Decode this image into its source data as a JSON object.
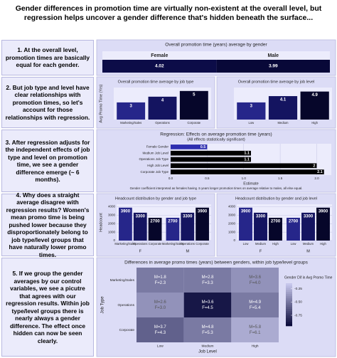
{
  "title": "Gender differences in promotion time are virtually non-existent at the overall level, but regression helps uncover a gender difference that's hidden beneath the surface...",
  "steps": [
    "1. At the overall level, promotion times are basically equal for each gender.",
    "2. But job type and level have clear relationships with promotion times, so let's account for those relationships with regression.",
    "3. After regression adjusts for the independent effects of job type and level on promotion time, we see a gender difference emerge (~ 6 months).",
    "4. Why does a straight average disagree with regression results? Women's mean promo time is being pushed lower because they disproportionately belong to job type/level groups that have naturally lower promo times.",
    "5. If we group the gender averages by our control variables, we see a picutre that agrees with our regression results. Within job type/level groups there is nearly always a gender difference. The effect once hidden can now be seen clearly."
  ],
  "chart_data": [
    {
      "type": "tile",
      "title": "Overall promotion time (years) average by gender",
      "categories": [
        "Female",
        "Male"
      ],
      "values": [
        4.02,
        3.99
      ],
      "colors": [
        "#0c0c48",
        "#080838"
      ]
    },
    {
      "type": "bar",
      "title": "Overall promotion time average by job type",
      "ylabel": "Avg Promo Time (Yrs)",
      "categories": [
        "Marketing/Sales",
        "Operations",
        "Corporate"
      ],
      "values": [
        3,
        4,
        5
      ],
      "colors": [
        "#26268a",
        "#141460",
        "#06062a"
      ],
      "ylim": [
        0,
        5.6
      ]
    },
    {
      "type": "bar",
      "title": "Overall promotion time average by job level",
      "categories": [
        "Low",
        "Medium",
        "High"
      ],
      "values": [
        3,
        4.1,
        4.9
      ],
      "colors": [
        "#26268a",
        "#141460",
        "#06062a"
      ],
      "ylim": [
        0,
        5.6
      ]
    },
    {
      "type": "barh",
      "title": "Regression: Effects on average promotion time (years)",
      "subtitle": "(All effects statistically significant)",
      "xlabel": "Estimate",
      "note": "Gender coefficient interpreted as females having .5 years longer promotion times on average relative to males, all else equal.",
      "categories": [
        "Female Gender",
        "Medium Job Level",
        "Operations Job Type",
        "High Job Level",
        "Corporate Job Type"
      ],
      "values": [
        0.5,
        1.1,
        1.1,
        2,
        2.1
      ],
      "colors": [
        "#2e2eb0",
        "#000000",
        "#000000",
        "#000000",
        "#000000"
      ],
      "xlim": [
        0,
        2.2
      ],
      "xticks": [
        {
          "value": 0,
          "label": "0.0"
        },
        0.5,
        {
          "value": 1,
          "label": "1.0"
        },
        1.5,
        {
          "value": 2,
          "label": "2.0"
        }
      ]
    },
    {
      "type": "bar",
      "title": "Headcount distribution by gender and job type",
      "ylabel": "Headcount",
      "categories": [
        "Marketing/Sales",
        "Operations",
        "Corporate"
      ],
      "series": [
        {
          "name": "F",
          "values": [
            3900,
            3300,
            2700
          ]
        },
        {
          "name": "M",
          "values": [
            2700,
            3300,
            3900
          ]
        }
      ],
      "colors": [
        "#26268a",
        "#141460",
        "#06062a"
      ],
      "ylim": [
        0,
        4300
      ],
      "yticks": [
        0,
        1000,
        2000,
        3000,
        4000
      ],
      "grid": true
    },
    {
      "type": "bar",
      "title": "Headcount distribution by gender and job level",
      "categories": [
        "Low",
        "Medium",
        "High"
      ],
      "series": [
        {
          "name": "F",
          "values": [
            3900,
            3300,
            2700
          ]
        },
        {
          "name": "M",
          "values": [
            2700,
            3300,
            3900
          ]
        }
      ],
      "colors": [
        "#26268a",
        "#141460",
        "#06062a"
      ],
      "ylim": [
        0,
        4300
      ],
      "yticks": [
        0,
        1000,
        2000,
        3000,
        4000
      ],
      "grid": true
    },
    {
      "type": "heatmap",
      "title": "Differences in average promo times (years) between genders, within job type/level groups",
      "xlabel": "Job Level",
      "ylabel": "Job Type",
      "legend_title": "Gender Dif in Avg Promo Time",
      "x": [
        "Low",
        "Medium",
        "High"
      ],
      "y": [
        "Marketing/Sales",
        "Operations",
        "Corporate"
      ],
      "values": [
        [
          -0.5,
          -0.5,
          -0.4
        ],
        [
          -0.4,
          -0.9,
          -0.5
        ],
        [
          -0.6,
          -0.5,
          -0.3
        ]
      ],
      "cell_labels": [
        [
          [
            "M=1.8",
            "F=2.3"
          ],
          [
            "M=2.8",
            "F=3.3"
          ],
          [
            "M=3.6",
            "F=4.0"
          ]
        ],
        [
          [
            "M=2.6",
            "F=3.0"
          ],
          [
            "M=3.6",
            "F=4.5"
          ],
          [
            "M=4.9",
            "F=5.4"
          ]
        ],
        [
          [
            "M=3.7",
            "F=4.3"
          ],
          [
            "M=4.8",
            "F=5.3"
          ],
          [
            "M=5.8",
            "F=6.1"
          ]
        ]
      ],
      "clim": [
        -0.95,
        -0.15
      ],
      "cticks": [
        -0.25,
        {
          "value": -0.5,
          "label": "-0.50"
        },
        -0.75
      ],
      "colors": [
        "#0b0b3b",
        "#d0d0f4"
      ]
    }
  ]
}
